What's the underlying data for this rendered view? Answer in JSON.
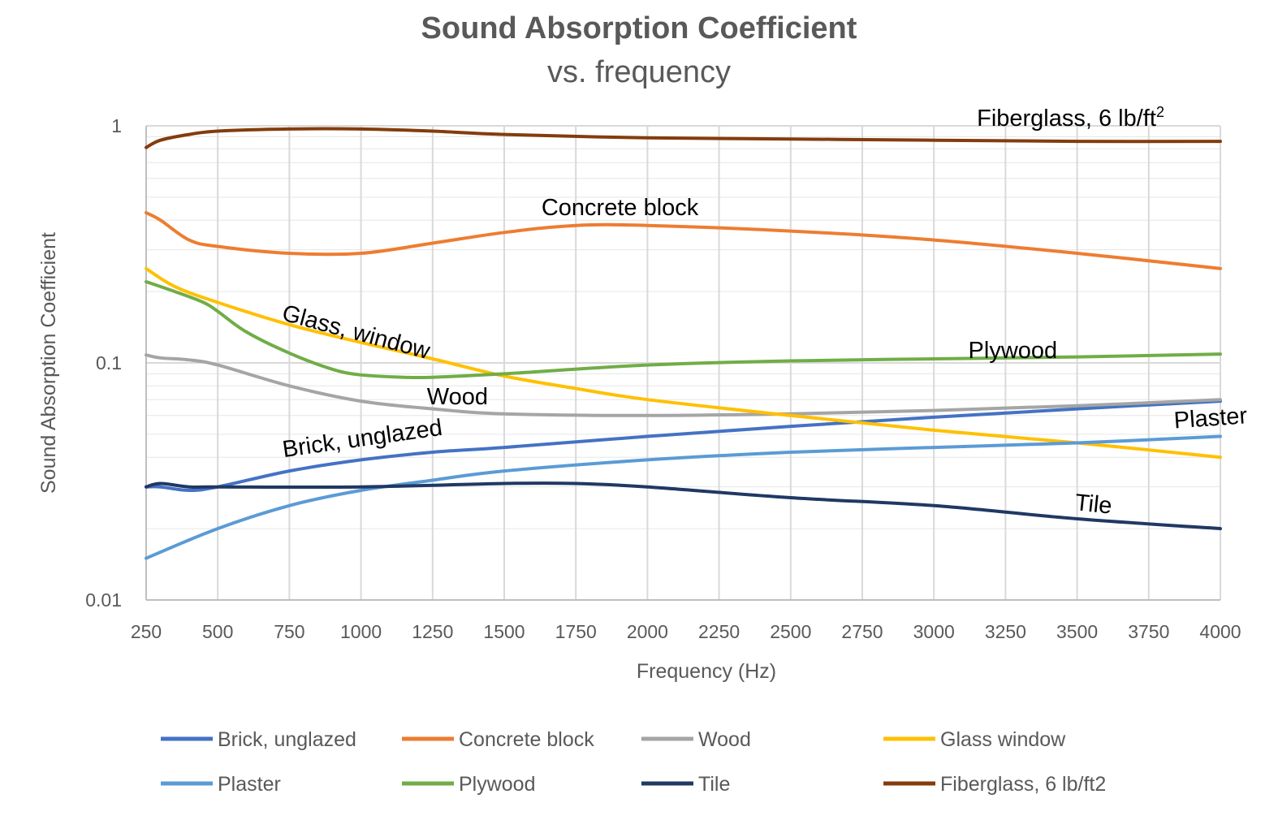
{
  "chart_data": {
    "type": "line",
    "title": "Sound Absorption Coefficient",
    "subtitle": "vs. frequency",
    "xlabel": "Frequency  (Hz)",
    "ylabel": "Sound Absorption  Coefficient",
    "xlim": [
      250,
      4000
    ],
    "ylim": [
      0.01,
      1
    ],
    "yscale": "log",
    "x_ticks": [
      "250",
      "500",
      "750",
      "1000",
      "1250",
      "1500",
      "1750",
      "2000",
      "2250",
      "2500",
      "2750",
      "3000",
      "3250",
      "3500",
      "3750",
      "4000"
    ],
    "y_ticks": [
      {
        "value": 0.01,
        "label": "0.01"
      },
      {
        "value": 0.1,
        "label": "0.1"
      },
      {
        "value": 1,
        "label": "1"
      }
    ],
    "grid": true,
    "legend_position": "bottom",
    "series": [
      {
        "name": "Brick, unglazed",
        "color": "#4472C4",
        "points": [
          [
            250,
            0.03
          ],
          [
            300,
            0.03
          ],
          [
            400,
            0.029
          ],
          [
            500,
            0.03
          ],
          [
            750,
            0.035
          ],
          [
            1000,
            0.039
          ],
          [
            1250,
            0.042
          ],
          [
            1500,
            0.044
          ],
          [
            2000,
            0.049
          ],
          [
            2500,
            0.054
          ],
          [
            3000,
            0.059
          ],
          [
            3500,
            0.064
          ],
          [
            4000,
            0.069
          ]
        ]
      },
      {
        "name": "Concrete block",
        "color": "#ED7D31",
        "points": [
          [
            250,
            0.43
          ],
          [
            300,
            0.4
          ],
          [
            400,
            0.33
          ],
          [
            500,
            0.31
          ],
          [
            750,
            0.29
          ],
          [
            1000,
            0.29
          ],
          [
            1250,
            0.32
          ],
          [
            1500,
            0.355
          ],
          [
            1750,
            0.38
          ],
          [
            2000,
            0.38
          ],
          [
            2500,
            0.36
          ],
          [
            3000,
            0.33
          ],
          [
            3500,
            0.29
          ],
          [
            4000,
            0.25
          ]
        ]
      },
      {
        "name": "Wood",
        "color": "#A5A5A5",
        "points": [
          [
            250,
            0.108
          ],
          [
            300,
            0.105
          ],
          [
            400,
            0.103
          ],
          [
            500,
            0.098
          ],
          [
            750,
            0.08
          ],
          [
            1000,
            0.069
          ],
          [
            1250,
            0.064
          ],
          [
            1500,
            0.061
          ],
          [
            2000,
            0.06
          ],
          [
            2500,
            0.061
          ],
          [
            3000,
            0.063
          ],
          [
            3500,
            0.066
          ],
          [
            4000,
            0.07
          ]
        ]
      },
      {
        "name": "Glass window",
        "color": "#FFC000",
        "points": [
          [
            250,
            0.25
          ],
          [
            350,
            0.21
          ],
          [
            500,
            0.18
          ],
          [
            750,
            0.145
          ],
          [
            1000,
            0.122
          ],
          [
            1250,
            0.104
          ],
          [
            1500,
            0.088
          ],
          [
            1750,
            0.078
          ],
          [
            2000,
            0.07
          ],
          [
            2500,
            0.06
          ],
          [
            3000,
            0.052
          ],
          [
            3500,
            0.046
          ],
          [
            4000,
            0.04
          ]
        ]
      },
      {
        "name": "Plaster",
        "color": "#5B9BD5",
        "points": [
          [
            250,
            0.015
          ],
          [
            500,
            0.02
          ],
          [
            750,
            0.025
          ],
          [
            1000,
            0.029
          ],
          [
            1250,
            0.032
          ],
          [
            1500,
            0.035
          ],
          [
            2000,
            0.039
          ],
          [
            2500,
            0.042
          ],
          [
            3000,
            0.044
          ],
          [
            3500,
            0.046
          ],
          [
            4000,
            0.049
          ]
        ]
      },
      {
        "name": "Plywood",
        "color": "#70AD47",
        "points": [
          [
            250,
            0.22
          ],
          [
            350,
            0.2
          ],
          [
            450,
            0.18
          ],
          [
            500,
            0.165
          ],
          [
            600,
            0.135
          ],
          [
            750,
            0.11
          ],
          [
            900,
            0.094
          ],
          [
            1000,
            0.089
          ],
          [
            1150,
            0.087
          ],
          [
            1250,
            0.087
          ],
          [
            1500,
            0.09
          ],
          [
            2000,
            0.098
          ],
          [
            2500,
            0.102
          ],
          [
            3000,
            0.104
          ],
          [
            3500,
            0.106
          ],
          [
            4000,
            0.109
          ]
        ]
      },
      {
        "name": "Tile",
        "color": "#203864",
        "points": [
          [
            250,
            0.03
          ],
          [
            300,
            0.031
          ],
          [
            400,
            0.03
          ],
          [
            500,
            0.03
          ],
          [
            1000,
            0.03
          ],
          [
            1500,
            0.031
          ],
          [
            1750,
            0.031
          ],
          [
            2000,
            0.03
          ],
          [
            2500,
            0.027
          ],
          [
            3000,
            0.025
          ],
          [
            3500,
            0.022
          ],
          [
            4000,
            0.02
          ]
        ]
      },
      {
        "name": "Fiberglass, 6 lb/ft2",
        "color": "#843C0C",
        "points": [
          [
            250,
            0.81
          ],
          [
            300,
            0.87
          ],
          [
            400,
            0.92
          ],
          [
            500,
            0.95
          ],
          [
            750,
            0.97
          ],
          [
            1000,
            0.97
          ],
          [
            1250,
            0.95
          ],
          [
            1500,
            0.92
          ],
          [
            2000,
            0.89
          ],
          [
            2500,
            0.88
          ],
          [
            3000,
            0.87
          ],
          [
            3500,
            0.86
          ],
          [
            4000,
            0.86
          ]
        ]
      }
    ],
    "annotations": [
      {
        "text": "Fiberglass, 6 lb/ft",
        "sup": "2",
        "x": 3150,
        "y": 1.0,
        "rotate": 0
      },
      {
        "text": "Concrete block",
        "x": 1630,
        "y": 0.42,
        "rotate": 0
      },
      {
        "text": "Glass, window",
        "x": 720,
        "y": 0.152,
        "rotate": 15
      },
      {
        "text": "Plywood",
        "x": 3120,
        "y": 0.105,
        "rotate": 0
      },
      {
        "text": "Wood",
        "x": 1230,
        "y": 0.067,
        "rotate": 0
      },
      {
        "text": "Brick, unglazed",
        "x": 730,
        "y": 0.04,
        "rotate": -8
      },
      {
        "text": "Plaster",
        "x": 3840,
        "y": 0.053,
        "rotate": -4
      },
      {
        "text": "Tile",
        "x": 3490,
        "y": 0.024,
        "rotate": 6
      }
    ]
  }
}
